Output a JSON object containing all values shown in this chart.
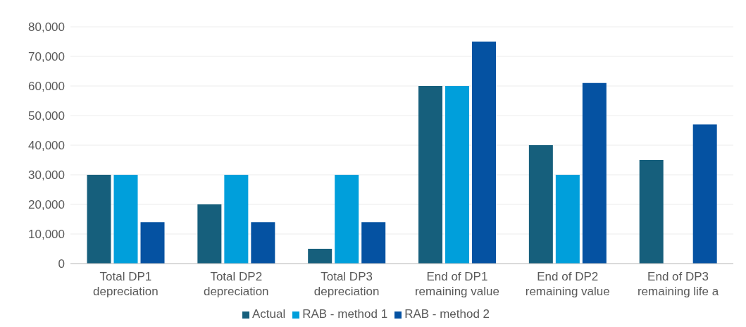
{
  "chart_data": {
    "type": "bar",
    "categories": [
      "Total DP1 depreciation",
      "Total DP2 depreciation",
      "Total DP3 depreciation",
      "End of DP1 remaining value",
      "End of DP2 remaining value",
      "End of DP3 remaining life a"
    ],
    "series": [
      {
        "name": "Actual",
        "color": "#165f7c",
        "values": [
          30000,
          20000,
          5000,
          60000,
          40000,
          35000
        ]
      },
      {
        "name": "RAB - method 1",
        "color": "#009fdb",
        "values": [
          30000,
          30000,
          30000,
          60000,
          30000,
          null
        ]
      },
      {
        "name": "RAB - method 2",
        "color": "#0552a2",
        "values": [
          14000,
          14000,
          14000,
          75000,
          61000,
          47000
        ]
      }
    ],
    "ylim": [
      0,
      80000
    ],
    "yticks": [
      0,
      {
        "value": 10000,
        "label": "10,000"
      },
      {
        "value": 20000,
        "label": "20,000"
      },
      {
        "value": 30000,
        "label": "30,000"
      },
      {
        "value": 40000,
        "label": "40,000"
      },
      {
        "value": 50000,
        "label": "50,000"
      },
      {
        "value": 60000,
        "label": "60,000"
      },
      {
        "value": 70000,
        "label": "70,000"
      },
      {
        "value": 80000,
        "label": "80,000"
      }
    ],
    "grid": "y",
    "legend": "bottom"
  }
}
